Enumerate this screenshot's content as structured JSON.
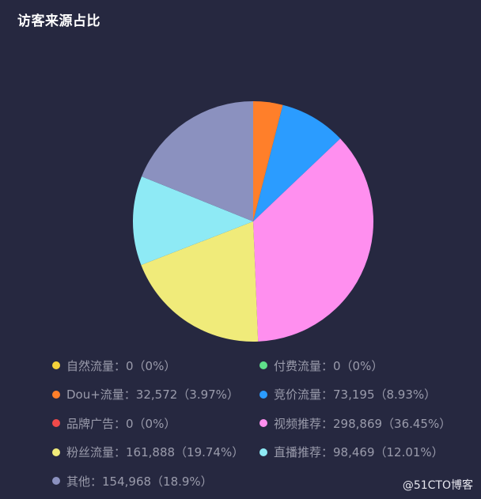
{
  "title": "访客来源占比",
  "watermark": "@51CTO博客",
  "chart_data": {
    "type": "pie",
    "title": "访客来源占比",
    "legend_position": "bottom",
    "start_angle_deg": 90,
    "direction": "clockwise",
    "categories": [
      "自然流量",
      "付费流量",
      "Dou+流量",
      "竞价流量",
      "品牌广告",
      "视频推荐",
      "粉丝流量",
      "直播推荐",
      "其他"
    ],
    "values": [
      0,
      0,
      32572,
      73195,
      0,
      298869,
      161888,
      98469,
      154968
    ],
    "percentages": [
      0,
      0,
      3.97,
      8.93,
      0,
      36.45,
      19.74,
      12.01,
      18.9
    ],
    "colors": [
      "#f5d23a",
      "#5fe08a",
      "#ff7f2a",
      "#2b9cff",
      "#f04a4a",
      "#ff8fef",
      "#f0eb7a",
      "#8eeaf5",
      "#8b91bf"
    ]
  },
  "legend": [
    {
      "label": "自然流量：0（0%）",
      "color": "#f5d23a"
    },
    {
      "label": "付费流量：0（0%）",
      "color": "#5fe08a"
    },
    {
      "label": "Dou+流量：32,572（3.97%）",
      "color": "#ff7f2a"
    },
    {
      "label": "竞价流量：73,195（8.93%）",
      "color": "#2b9cff"
    },
    {
      "label": "品牌广告：0（0%）",
      "color": "#f04a4a"
    },
    {
      "label": "视频推荐：298,869（36.45%）",
      "color": "#ff8fef"
    },
    {
      "label": "粉丝流量：161,888（19.74%）",
      "color": "#f0eb7a"
    },
    {
      "label": "直播推荐：98,469（12.01%）",
      "color": "#8eeaf5"
    },
    {
      "label": "其他：154,968（18.9%）",
      "color": "#8b91bf"
    }
  ]
}
